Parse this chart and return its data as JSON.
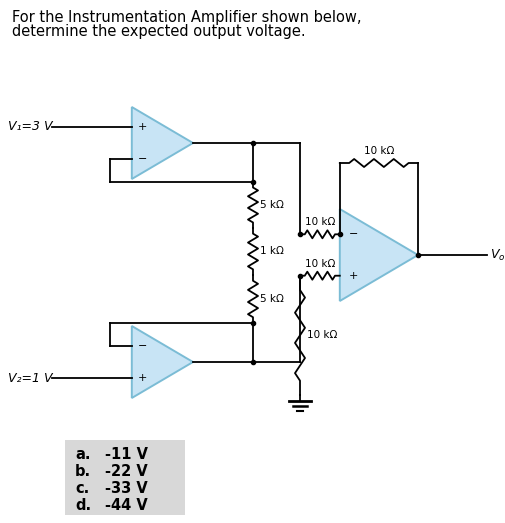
{
  "title_line1": "For the Instrumentation Amplifier shown below,",
  "title_line2": "determine the expected output voltage.",
  "bg_color": "#ffffff",
  "amp_color": "#c8e4f5",
  "amp_edge_color": "#7bbcd5",
  "wire_color": "#000000",
  "label_v1": "V₁=3 V",
  "label_v2": "V₂=1 V",
  "label_vo": "Vₒ",
  "label_r_5k_top": "5 kΩ",
  "label_r_1k": "1 kΩ",
  "label_r_5k_bot": "5 kΩ",
  "label_r_10k_minus": "10 kΩ",
  "label_r_10k_plus": "10 kΩ",
  "label_r_10k_fb": "10 kΩ",
  "label_r_10k_gnd": "10 kΩ",
  "choices": [
    [
      "a.",
      "-11 V"
    ],
    [
      "b.",
      "-22 V"
    ],
    [
      "c.",
      "-33 V"
    ],
    [
      "d.",
      "-44 V"
    ]
  ],
  "figw": 5.05,
  "figh": 5.23,
  "dpi": 100
}
